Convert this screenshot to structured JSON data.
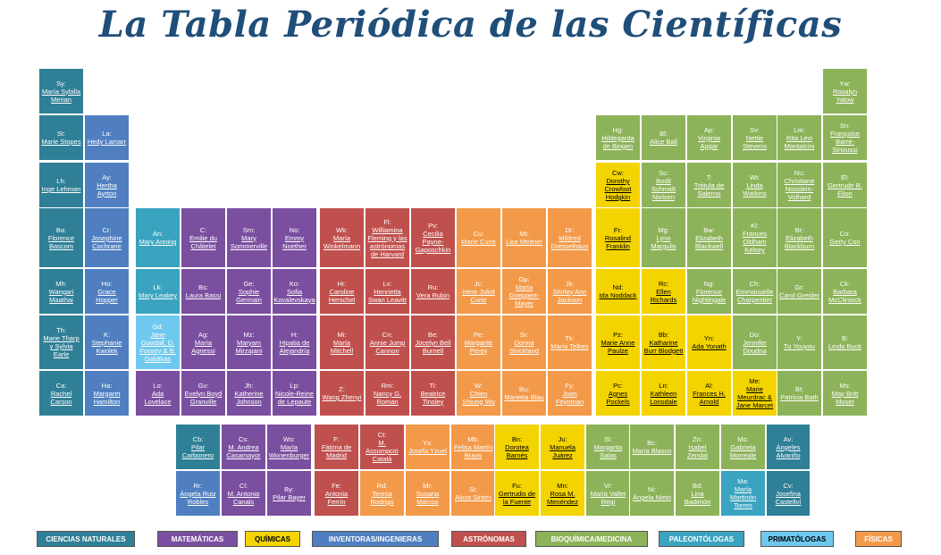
{
  "title": "La Tabla Periódica de las Científicas",
  "colors": {
    "naturales": "#2f7f97",
    "matematicas": "#7b4fa0",
    "quimicas": "#f4d400",
    "inventoras": "#4f7fc0",
    "astronomas": "#c0504d",
    "bioquimica": "#8db35a",
    "paleontologas": "#3aa3bf",
    "primatologas": "#6fc9ef",
    "fisicas": "#f39a4a"
  },
  "cells": [
    {
      "sym": "Sy:",
      "name": "María Sybilla Merian",
      "cat": "naturales"
    },
    {
      "sym": "Yw:",
      "name": "Rosalyn Yalow",
      "cat": "bioquimica"
    },
    {
      "sym": "St:",
      "name": "Marie Stopes",
      "cat": "naturales"
    },
    {
      "sym": "La:",
      "name": "Hedy Lamarr",
      "cat": "inventoras"
    },
    {
      "sym": "Hg:",
      "name": "Hildegarda de Bingen",
      "cat": "bioquimica"
    },
    {
      "sym": "Bl:",
      "name": "Alice Ball",
      "cat": "bioquimica"
    },
    {
      "sym": "Ap:",
      "name": "Virginia Apgar",
      "cat": "bioquimica"
    },
    {
      "sym": "Sv:",
      "name": "Nettie Stevens",
      "cat": "bioquimica"
    },
    {
      "sym": "Lm:",
      "name": "Rita Levi Montalcini",
      "cat": "bioquimica"
    },
    {
      "sym": "Sn:",
      "name": "Françoise Barré-Sinoussi",
      "cat": "bioquimica"
    },
    {
      "sym": "Lh:",
      "name": "Inge Lehman",
      "cat": "naturales"
    },
    {
      "sym": "Ay:",
      "name": "Hertha Ayrton",
      "cat": "inventoras"
    },
    {
      "sym": "Cw:",
      "name": "Dorothy Crowfoot Hodgkin",
      "cat": "quimicas"
    },
    {
      "sym": "Sc:",
      "name": "Bodil Schmidt Nielsen",
      "cat": "bioquimica"
    },
    {
      "sym": "T:",
      "name": "Trótula de Salerno",
      "cat": "bioquimica"
    },
    {
      "sym": "Wt:",
      "name": "Linda Watkins",
      "cat": "bioquimica"
    },
    {
      "sym": "Nu:",
      "name": "Christiane Nüsslein-Volhard",
      "cat": "bioquimica"
    },
    {
      "sym": "El:",
      "name": "Gertrude B. Elion",
      "cat": "bioquimica"
    },
    {
      "sym": "Ba:",
      "name": "Florence Bascom",
      "cat": "naturales"
    },
    {
      "sym": "Cr:",
      "name": "Josephine Cochrane",
      "cat": "inventoras"
    },
    {
      "sym": "An:",
      "name": "Mary Anning",
      "cat": "paleontologas"
    },
    {
      "sym": "C:",
      "name": "Emilie du Châtelet",
      "cat": "matematicas"
    },
    {
      "sym": "Sm:",
      "name": "Mary Sommerville",
      "cat": "matematicas"
    },
    {
      "sym": "No:",
      "name": "Emmy Noether",
      "cat": "matematicas"
    },
    {
      "sym": "Wk:",
      "name": "María Winkelmann",
      "cat": "astronomas"
    },
    {
      "sym": "Fl:",
      "name": "Williamina Fleming y las astrónomas de Harvard",
      "cat": "astronomas"
    },
    {
      "sym": "Pv:",
      "name": "Cecilia Payne-Gaposchkin",
      "cat": "astronomas"
    },
    {
      "sym": "Cu:",
      "name": "Marie Curie",
      "cat": "fisicas"
    },
    {
      "sym": "Mt:",
      "name": "Lise Meitner",
      "cat": "fisicas"
    },
    {
      "sym": "Dr:",
      "name": "Mildred Dresselhaus",
      "cat": "fisicas"
    },
    {
      "sym": "Fr:",
      "name": "Rosalind Franklin",
      "cat": "quimicas"
    },
    {
      "sym": "Mg:",
      "name": "Lynn Margulis",
      "cat": "bioquimica"
    },
    {
      "sym": "Bw:",
      "name": "Elizabeth Blackwell",
      "cat": "bioquimica"
    },
    {
      "sym": "Kl:",
      "name": "Frances Oldham Kelsey",
      "cat": "bioquimica"
    },
    {
      "sym": "Br:",
      "name": "Elizabeth Blackburn",
      "cat": "bioquimica"
    },
    {
      "sym": "Co:",
      "name": "Gerty Cori",
      "cat": "bioquimica"
    },
    {
      "sym": "Mh:",
      "name": "Wangari Maathai",
      "cat": "naturales"
    },
    {
      "sym": "Ho:",
      "name": "Grace Hopper",
      "cat": "inventoras"
    },
    {
      "sym": "Lk:",
      "name": "Mary Leakey",
      "cat": "paleontologas"
    },
    {
      "sym": "Bs:",
      "name": "Laura Bassi",
      "cat": "matematicas"
    },
    {
      "sym": "Ge:",
      "name": "Sophie Germain",
      "cat": "matematicas"
    },
    {
      "sym": "Ko:",
      "name": "Sofia Kovalevskaya",
      "cat": "matematicas"
    },
    {
      "sym": "Hr:",
      "name": "Caroline Herschel",
      "cat": "astronomas"
    },
    {
      "sym": "Lv:",
      "name": "Henrietta Swan Leavitt",
      "cat": "astronomas"
    },
    {
      "sym": "Ru:",
      "name": "Vera Rubin",
      "cat": "astronomas"
    },
    {
      "sym": "Jc:",
      "name": "Irène Joliot Curie",
      "cat": "fisicas"
    },
    {
      "sym": "Gp:",
      "name": "María Goeppert-Mayer",
      "cat": "fisicas"
    },
    {
      "sym": "Jk:",
      "name": "Shirley Ann Jackson",
      "cat": "fisicas"
    },
    {
      "sym": "Nd:",
      "name": "Ida Noddack",
      "cat": "quimicas"
    },
    {
      "sym": "Rc:",
      "name": "Ellen Richards",
      "cat": "quimicas"
    },
    {
      "sym": "Ng:",
      "name": "Florence Nightingale",
      "cat": "bioquimica"
    },
    {
      "sym": "Ch:",
      "name": "Emmanuelle Charpentier",
      "cat": "bioquimica"
    },
    {
      "sym": "Gr:",
      "name": "Carol Greider",
      "cat": "bioquimica"
    },
    {
      "sym": "Ck:",
      "name": "Barbara McClintock",
      "cat": "bioquimica"
    },
    {
      "sym": "Th:",
      "name": "Marie Tharp y Sylvia Earle",
      "cat": "naturales"
    },
    {
      "sym": "K:",
      "name": "Stephanie Kwolek",
      "cat": "inventoras"
    },
    {
      "sym": "Gd:",
      "name": "Jane Goodall, D. Fossey & B. Galdikas",
      "cat": "primatologas"
    },
    {
      "sym": "Ag:",
      "name": "María Agnessi",
      "cat": "matematicas"
    },
    {
      "sym": "Mz:",
      "name": "Maryam Mirzajani",
      "cat": "matematicas"
    },
    {
      "sym": "H:",
      "name": "Hipatia de Alejandría",
      "cat": "matematicas"
    },
    {
      "sym": "Mi:",
      "name": "María Mitchell",
      "cat": "astronomas"
    },
    {
      "sym": "Cn:",
      "name": "Annie Jump Cannon",
      "cat": "astronomas"
    },
    {
      "sym": "Be:",
      "name": "Jocelyn Bell Burnell",
      "cat": "astronomas"
    },
    {
      "sym": "Pe:",
      "name": "Margarite Perey",
      "cat": "fisicas"
    },
    {
      "sym": "Sr:",
      "name": "Donna Strickland",
      "cat": "fisicas"
    },
    {
      "sym": "Tk:",
      "name": "María Telkes",
      "cat": "fisicas"
    },
    {
      "sym": "Pz:",
      "name": "Marie Anne Paulze",
      "cat": "quimicas"
    },
    {
      "sym": "Bb:",
      "name": "Katharine Burr Blodgett",
      "cat": "quimicas"
    },
    {
      "sym": "Yn:",
      "name": "Ada Yonath",
      "cat": "quimicas"
    },
    {
      "sym": "Do:",
      "name": "Jennifer Doudna",
      "cat": "bioquimica"
    },
    {
      "sym": "Y:",
      "name": "Tu Youyou",
      "cat": "bioquimica"
    },
    {
      "sym": "B:",
      "name": "Linda Buck",
      "cat": "bioquimica"
    },
    {
      "sym": "Ca:",
      "name": "Rachel Carson",
      "cat": "naturales"
    },
    {
      "sym": "Ha:",
      "name": "Margaret Hamilton",
      "cat": "inventoras"
    },
    {
      "sym": "Lo:",
      "name": "Ada Lovelace",
      "cat": "matematicas"
    },
    {
      "sym": "Gv:",
      "name": "Evelyn Boyd Granville",
      "cat": "matematicas"
    },
    {
      "sym": "Jh:",
      "name": "Katherine Johnson",
      "cat": "matematicas"
    },
    {
      "sym": "Lp:",
      "name": "Nicole-Reine de Lepaute",
      "cat": "matematicas"
    },
    {
      "sym": "Z:",
      "name": "Wang Zhenyi",
      "cat": "astronomas"
    },
    {
      "sym": "Rm:",
      "name": "Nancy G. Roman",
      "cat": "astronomas"
    },
    {
      "sym": "Ti:",
      "name": "Beatrice Tinsley",
      "cat": "astronomas"
    },
    {
      "sym": "W:",
      "name": "Chien Shiung Wu",
      "cat": "fisicas"
    },
    {
      "sym": "Bu:",
      "name": "Marietta Blau",
      "cat": "fisicas"
    },
    {
      "sym": "Fy:",
      "name": "Joan Feynman",
      "cat": "fisicas"
    },
    {
      "sym": "Pc:",
      "name": "Agnes Pockels",
      "cat": "quimicas"
    },
    {
      "sym": "Ln:",
      "name": "Kathleen Lonsdale",
      "cat": "quimicas"
    },
    {
      "sym": "Al:",
      "name": "Frances H. Arnold",
      "cat": "quimicas"
    },
    {
      "sym": "Me:",
      "name": "Marie Meurdrac & Jane Marcet",
      "cat": "quimicas"
    },
    {
      "sym": "Bt:",
      "name": "Patricia Bath",
      "cat": "bioquimica"
    },
    {
      "sym": "Ms:",
      "name": "May Britt Moser",
      "cat": "bioquimica"
    },
    {
      "sym": "Cb:",
      "name": "Pilar Carbonero",
      "cat": "naturales"
    },
    {
      "sym": "Cs:",
      "name": "M. Andrea Casamayor",
      "cat": "matematicas"
    },
    {
      "sym": "Wo:",
      "name": "María Wonenburger",
      "cat": "matematicas"
    },
    {
      "sym": "F:",
      "name": "Fátima de Madrid",
      "cat": "astronomas"
    },
    {
      "sym": "Ct:",
      "name": "M. Assumpció Catalá",
      "cat": "astronomas"
    },
    {
      "sym": "Yz:",
      "name": "Josefa Yzuel",
      "cat": "fisicas"
    },
    {
      "sym": "Mb:",
      "name": "Felisa Martín Bravo",
      "cat": "fisicas"
    },
    {
      "sym": "Bn:",
      "name": "Dorotea Barnés",
      "cat": "quimicas"
    },
    {
      "sym": "Ju:",
      "name": "Manuela Juárez",
      "cat": "quimicas"
    },
    {
      "sym": "Sl:",
      "name": "Margarita Salas",
      "cat": "bioquimica"
    },
    {
      "sym": "Bc:",
      "name": "María Blasco",
      "cat": "bioquimica"
    },
    {
      "sym": "Zn:",
      "name": "Isabel Zendal",
      "cat": "bioquimica"
    },
    {
      "sym": "Mo:",
      "name": "Gabriela Morreale",
      "cat": "bioquimica"
    },
    {
      "sym": "Av:",
      "name": "Ángeles Alvariño",
      "cat": "naturales"
    },
    {
      "sym": "Rr:",
      "name": "Ángela Ruiz Robles",
      "cat": "inventoras"
    },
    {
      "sym": "Cl:",
      "name": "M. Antonia Canals",
      "cat": "matematicas"
    },
    {
      "sym": "By:",
      "name": "Pilar Bayer",
      "cat": "matematicas"
    },
    {
      "sym": "Fe:",
      "name": "Antonia Ferrín",
      "cat": "astronomas"
    },
    {
      "sym": "Rd:",
      "name": "Teresa Rodrigo",
      "cat": "fisicas"
    },
    {
      "sym": "Mr:",
      "name": "Susana Marcos",
      "cat": "fisicas"
    },
    {
      "sym": "Si:",
      "name": "Alicia Sintes",
      "cat": "fisicas"
    },
    {
      "sym": "Fu:",
      "name": "Gertrudis de la Fuente",
      "cat": "quimicas"
    },
    {
      "sym": "Mn:",
      "name": "Rosa M. Menéndez",
      "cat": "quimicas"
    },
    {
      "sym": "Vr:",
      "name": "María Vallet Regí",
      "cat": "bioquimica"
    },
    {
      "sym": "Ni:",
      "name": "Ángela Nieto",
      "cat": "bioquimica"
    },
    {
      "sym": "Bd:",
      "name": "Lina Badimón",
      "cat": "bioquimica"
    },
    {
      "sym": "Ma:",
      "name": "María Martinón Torres",
      "cat": "paleontologas"
    },
    {
      "sym": "Cv:",
      "name": "Josefina Castellví",
      "cat": "naturales"
    }
  ],
  "legend": [
    {
      "label": "CIENCIAS NATURALES",
      "cat": "naturales"
    },
    {
      "label": "MATEMÁTICAS",
      "cat": "matematicas"
    },
    {
      "label": "QUÍMICAS",
      "cat": "quimicas"
    },
    {
      "label": "INVENTORAS/INGENIERAS",
      "cat": "inventoras"
    },
    {
      "label": "ASTRÓNOMAS",
      "cat": "astronomas"
    },
    {
      "label": "BIOQUÍMICA/MEDICINA",
      "cat": "bioquimica"
    },
    {
      "label": "PALEONTÓLOGAS",
      "cat": "paleontologas"
    },
    {
      "label": "PRIMATÓLOGAS",
      "cat": "primatologas"
    },
    {
      "label": "FÍSICAS",
      "cat": "fisicas"
    }
  ]
}
